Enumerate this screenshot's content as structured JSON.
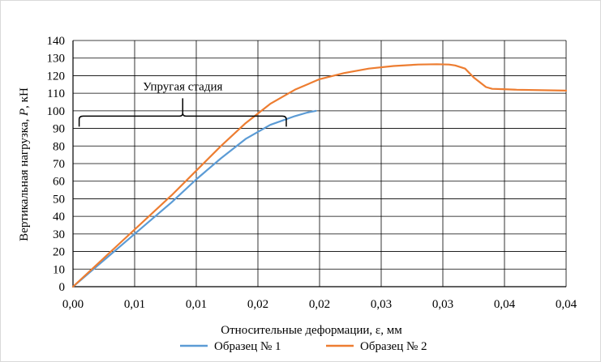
{
  "chart_data": {
    "type": "line",
    "title": "",
    "xlabel": "Относительные деформации, ε, мм",
    "ylabel_parts": [
      "Вертикальная нагрузка, ",
      "P",
      ", кН"
    ],
    "ylim": [
      0,
      140
    ],
    "xlim": [
      0,
      0.04
    ],
    "y_ticks": [
      0,
      10,
      20,
      30,
      40,
      50,
      60,
      70,
      80,
      90,
      100,
      110,
      120,
      130,
      140
    ],
    "x_tick_values": [
      0,
      0.005,
      0.01,
      0.015,
      0.02,
      0.025,
      0.03,
      0.035,
      0.04
    ],
    "x_tick_labels": [
      "0,00",
      "0,01",
      "0,01",
      "0,02",
      "0,02",
      "0,03",
      "0,03",
      "0,04",
      "0,04"
    ],
    "grid": true,
    "legend_position": "bottom",
    "annotation": {
      "text": "Упругая стадия",
      "x_range": [
        0.0005,
        0.0173
      ],
      "y": 97
    },
    "series": [
      {
        "name": "Образец № 1",
        "color": "#5b9bd5",
        "x": [
          0,
          0.002,
          0.004,
          0.006,
          0.008,
          0.01,
          0.012,
          0.014,
          0.016,
          0.018,
          0.019,
          0.0197
        ],
        "y": [
          0,
          12,
          24,
          36,
          48,
          61,
          73,
          84,
          92,
          97,
          99,
          100
        ]
      },
      {
        "name": "Образец № 2",
        "color": "#ed7d31",
        "x": [
          0,
          0.002,
          0.004,
          0.006,
          0.008,
          0.01,
          0.012,
          0.014,
          0.016,
          0.018,
          0.02,
          0.022,
          0.024,
          0.026,
          0.028,
          0.0295,
          0.0305,
          0.031,
          0.0318,
          0.0325,
          0.0335,
          0.034,
          0.0349,
          0.036,
          0.04
        ],
        "y": [
          0,
          13,
          26,
          39,
          52,
          66,
          80,
          93,
          104,
          112,
          118,
          121.5,
          124,
          125.5,
          126.3,
          126.5,
          126.3,
          125.8,
          124,
          119,
          113.5,
          112.5,
          112.3,
          112,
          111.5
        ]
      }
    ]
  }
}
